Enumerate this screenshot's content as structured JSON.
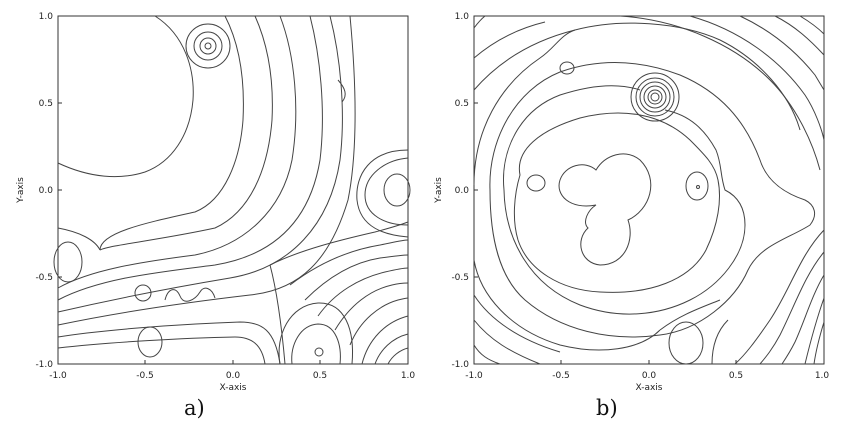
{
  "panels": [
    {
      "id": "a",
      "caption": "a)",
      "xlabel": "X-axis",
      "ylabel": "Y-axis",
      "x_ticks": [
        "-1.0",
        "-0.5",
        "0.0",
        "0.5",
        "1.0"
      ],
      "y_ticks": [
        "1.0",
        "0.5",
        "0.0",
        "-0.5",
        "-1.0"
      ]
    },
    {
      "id": "b",
      "caption": "b)",
      "xlabel": "X-axis",
      "ylabel": "Y-axis",
      "x_ticks": [
        "-1.0",
        "-0.5",
        "0.0",
        "0.5",
        "1.0"
      ],
      "y_ticks": [
        "1.0",
        "0.5",
        "0.0",
        "-0.5",
        "-1.0"
      ]
    }
  ],
  "chart_data": [
    {
      "type": "contour",
      "title": "",
      "xlabel": "X-axis",
      "ylabel": "Y-axis",
      "xlim": [
        -1.0,
        1.0
      ],
      "ylim": [
        -1.0,
        1.0
      ],
      "caption": "a)"
    },
    {
      "type": "contour",
      "title": "",
      "xlabel": "X-axis",
      "ylabel": "Y-axis",
      "xlim": [
        -1.0,
        1.0
      ],
      "ylim": [
        -1.0,
        1.0
      ],
      "caption": "b)"
    }
  ]
}
